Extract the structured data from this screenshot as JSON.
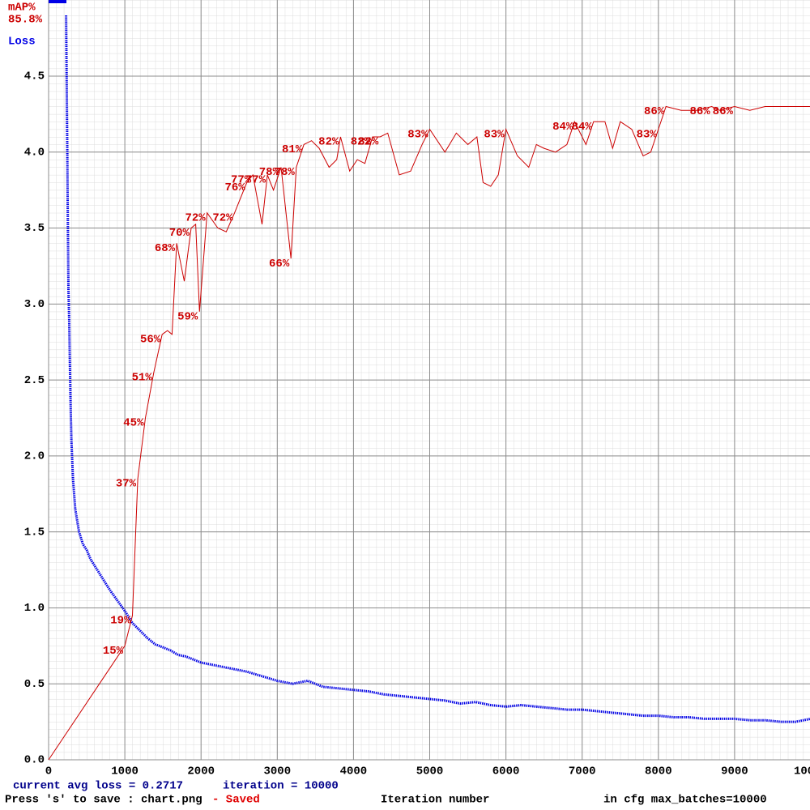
{
  "chart_data": {
    "type": "line",
    "x_label": "Iteration number",
    "xlim": [
      0,
      10000
    ],
    "xticks": [
      0,
      1000,
      2000,
      3000,
      4000,
      5000,
      6000,
      7000,
      8000,
      9000,
      10000
    ],
    "ylim": [
      0,
      5
    ],
    "yticks": [
      {
        "value": 0,
        "label": "0.0"
      },
      0.5,
      {
        "value": 1,
        "label": "1.0"
      },
      1.5,
      {
        "value": 2,
        "label": "2.0"
      },
      2.5,
      {
        "value": 3,
        "label": "3.0"
      },
      3.5,
      {
        "value": 4,
        "label": "4.0"
      },
      4.5
    ],
    "y2lim": [
      0,
      100
    ],
    "grid": true,
    "best_map": "85.8%",
    "series": [
      {
        "name": "Loss",
        "color": "#0000e6",
        "x": [
          230,
          235,
          240,
          245,
          250,
          255,
          260,
          270,
          280,
          290,
          300,
          320,
          350,
          400,
          450,
          500,
          550,
          600,
          700,
          800,
          900,
          1000,
          1100,
          1200,
          1300,
          1400,
          1500,
          1600,
          1700,
          1800,
          1900,
          2000,
          2200,
          2400,
          2600,
          2800,
          3000,
          3200,
          3400,
          3600,
          3800,
          4000,
          4200,
          4400,
          4600,
          4800,
          5000,
          5200,
          5400,
          5600,
          5800,
          6000,
          6200,
          6400,
          6600,
          6800,
          7000,
          7200,
          7400,
          7600,
          7800,
          8000,
          8200,
          8400,
          8600,
          8800,
          9000,
          9200,
          9400,
          9600,
          9800,
          10000
        ],
        "values": [
          4.9,
          4.6,
          4.3,
          4.0,
          3.7,
          3.4,
          3.1,
          2.9,
          2.6,
          2.3,
          2.1,
          1.85,
          1.65,
          1.5,
          1.42,
          1.38,
          1.32,
          1.28,
          1.2,
          1.12,
          1.05,
          0.98,
          0.9,
          0.85,
          0.8,
          0.76,
          0.74,
          0.72,
          0.69,
          0.68,
          0.66,
          0.64,
          0.62,
          0.6,
          0.58,
          0.55,
          0.52,
          0.5,
          0.52,
          0.48,
          0.47,
          0.46,
          0.45,
          0.43,
          0.42,
          0.41,
          0.4,
          0.39,
          0.37,
          0.38,
          0.36,
          0.35,
          0.36,
          0.35,
          0.34,
          0.33,
          0.33,
          0.32,
          0.31,
          0.3,
          0.29,
          0.29,
          0.28,
          0.28,
          0.27,
          0.27,
          0.27,
          0.26,
          0.26,
          0.25,
          0.25,
          0.27
        ]
      },
      {
        "name": "mAP%",
        "color": "#cc0000",
        "axis": "y2",
        "x": [
          0,
          1000,
          1100,
          1170,
          1270,
          1380,
          1490,
          1560,
          1620,
          1680,
          1780,
          1870,
          1930,
          1980,
          2080,
          2220,
          2330,
          2440,
          2600,
          2680,
          2800,
          2870,
          2950,
          3050,
          3180,
          3250,
          3350,
          3450,
          3550,
          3680,
          3780,
          3830,
          3950,
          4050,
          4150,
          4250,
          4350,
          4450,
          4600,
          4750,
          4900,
          5000,
          5200,
          5350,
          5500,
          5620,
          5700,
          5800,
          5900,
          6000,
          6150,
          6300,
          6400,
          6500,
          6650,
          6800,
          6900,
          7050,
          7150,
          7300,
          7400,
          7500,
          7650,
          7800,
          7900,
          8000,
          8100,
          8300,
          8500,
          8700,
          8800,
          9000,
          9200,
          9400,
          9700,
          10000
        ],
        "values": [
          0,
          15,
          19,
          37,
          45,
          51,
          56,
          56.5,
          56,
          68,
          63,
          70,
          70.5,
          59,
          72,
          70,
          69.5,
          72,
          76,
          77,
          70.5,
          77,
          75,
          78,
          66,
          78,
          81,
          81.5,
          80.5,
          78,
          79,
          82,
          77.5,
          79,
          78.5,
          82,
          82,
          82.5,
          77,
          77.5,
          81,
          83,
          80,
          82.5,
          81,
          82,
          76,
          75.5,
          77,
          83,
          79.5,
          78,
          81,
          80.5,
          80,
          81,
          84,
          81,
          84,
          84,
          80.5,
          84,
          83,
          79.5,
          80,
          83,
          86,
          85.5,
          85.5,
          86,
          85.5,
          86,
          85.5,
          86,
          86,
          86
        ],
        "value_labels": [
          null,
          "15%",
          "19%",
          "37%",
          "45%",
          "51%",
          "56%",
          null,
          null,
          "68%",
          null,
          "70%",
          null,
          "59%",
          "72%",
          null,
          null,
          "72%",
          "76%",
          "77%",
          null,
          "77%",
          null,
          "78%",
          "66%",
          "78%",
          "81%",
          null,
          null,
          null,
          null,
          "82%",
          null,
          null,
          null,
          "82%",
          "82%",
          null,
          null,
          null,
          null,
          "83%",
          null,
          null,
          null,
          null,
          null,
          null,
          null,
          "83%",
          null,
          null,
          null,
          null,
          null,
          null,
          "84%",
          null,
          "84%",
          null,
          null,
          null,
          null,
          null,
          null,
          "83%",
          "86%",
          null,
          null,
          "86%",
          null,
          "86%",
          null,
          null,
          null,
          null
        ]
      }
    ],
    "status": {
      "current_avg_loss": "current avg loss = 0.2717",
      "iteration": "iteration = 10000",
      "save_hint": "Press 's' to save : chart.png",
      "saved": "- Saved",
      "max_batches": "in cfg max_batches=10000"
    }
  }
}
